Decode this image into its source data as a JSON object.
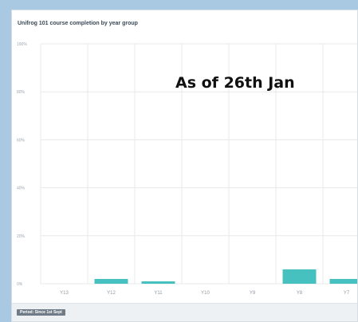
{
  "chart_data": {
    "type": "bar",
    "title": "Unifrog 101 course completion by year group",
    "annotation": "As of 26th Jan",
    "categories": [
      "Y13",
      "Y12",
      "Y11",
      "Y10",
      "Y9",
      "Y8",
      "Y7"
    ],
    "values": [
      0,
      2,
      1,
      0,
      0,
      6,
      2
    ],
    "ylim": [
      0,
      100
    ],
    "yticks": [
      0,
      20,
      40,
      60,
      80,
      100
    ],
    "ytick_labels": [
      "0%",
      "20%",
      "40%",
      "60%",
      "80%",
      "100%"
    ],
    "xlabel": "",
    "ylabel": "",
    "grid": true,
    "legend": "none",
    "bar_color": "#47c1bf",
    "gridline_color": "#e6e9ec"
  },
  "footer": {
    "period_label": "Period: Since 1st Sept"
  }
}
